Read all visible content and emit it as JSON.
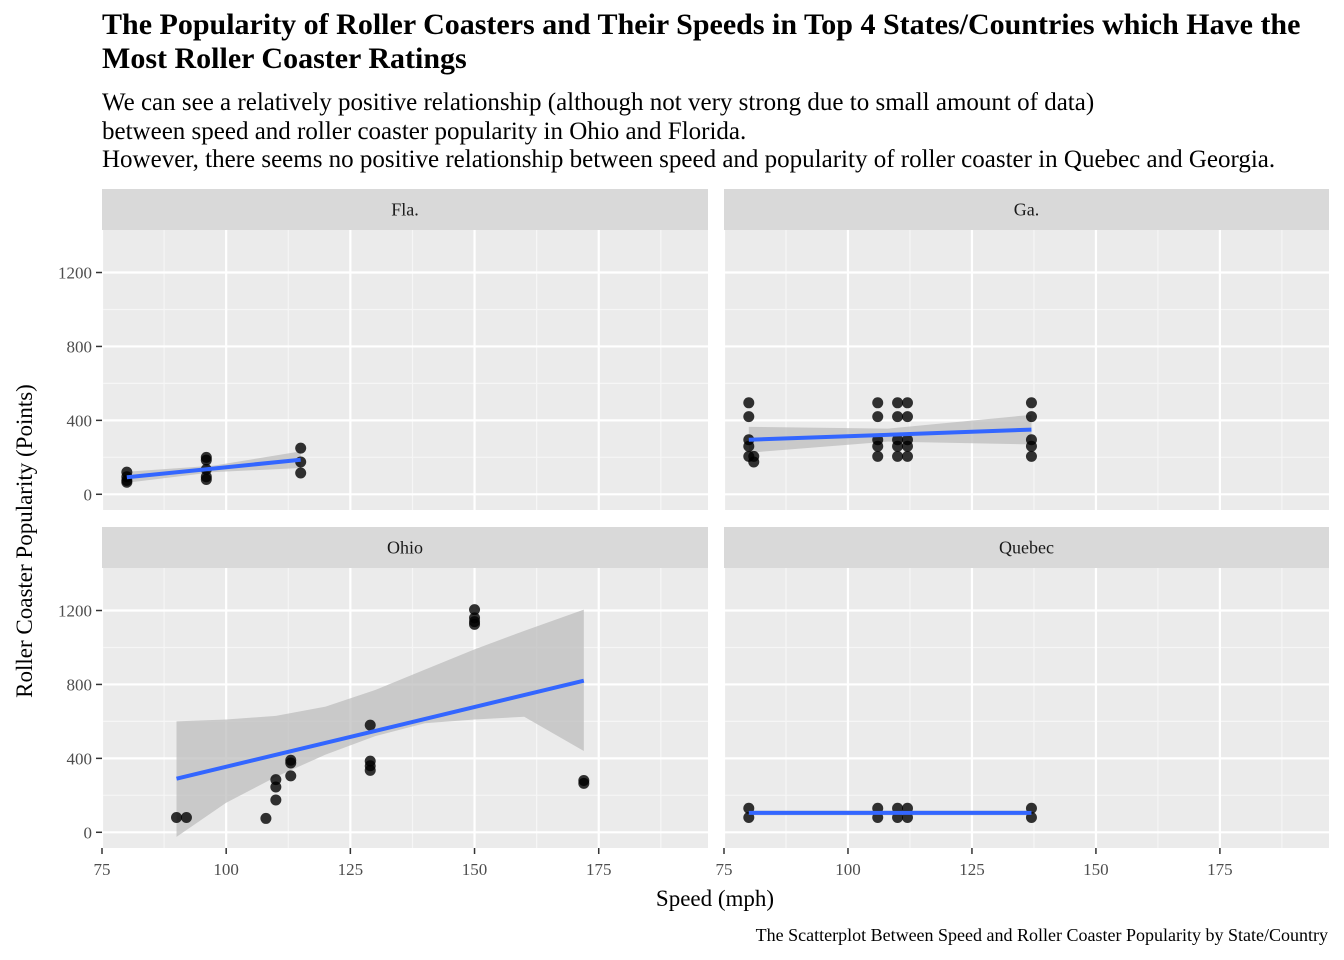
{
  "chart_data": {
    "type": "scatter",
    "title": "The Popularity of Roller Coasters and Their Speeds in Top 4 States/Countries which Have the Most Roller Coaster Ratings",
    "subtitle": [
      "We can see a relatively positive relationship (although not very strong due to small amount of data)",
      "between speed and roller coaster popularity in Ohio and Florida.",
      "However, there seems no positive relationship between speed and popularity of roller coaster in Quebec and Georgia."
    ],
    "xlabel": "Speed (mph)",
    "ylabel": "Roller Coaster Popularity (Points)",
    "caption": "The Scatterplot Between Speed and Roller Coaster Popularity by State/Country",
    "xlim": [
      75,
      197
    ],
    "ylim": [
      -85,
      1430
    ],
    "x_ticks": [
      75,
      100,
      125,
      150,
      175
    ],
    "y_ticks": [
      0,
      400,
      800,
      1200
    ],
    "grid": true,
    "smoothing": "linear regression with confidence band",
    "colors": {
      "points": "#000000",
      "line": "#3366ff",
      "band": "#bdbdbd",
      "panel": "#ebebeb",
      "strip": "#d9d9d9"
    },
    "panels": [
      {
        "name": "Fla.",
        "points": [
          [
            80,
            120
          ],
          [
            80,
            95
          ],
          [
            80,
            75
          ],
          [
            80,
            65
          ],
          [
            96,
            200
          ],
          [
            96,
            185
          ],
          [
            96,
            135
          ],
          [
            96,
            95
          ],
          [
            96,
            80
          ],
          [
            115,
            250
          ],
          [
            115,
            175
          ],
          [
            115,
            115
          ]
        ],
        "fit": {
          "x": [
            80,
            115
          ],
          "y": [
            92,
            187
          ]
        },
        "band": {
          "x": [
            80,
            97.5,
            115
          ],
          "upper": [
            122,
            155,
            232
          ],
          "lower": [
            62,
            120,
            142
          ]
        }
      },
      {
        "name": "Ga.",
        "points": [
          [
            80,
            495
          ],
          [
            80,
            420
          ],
          [
            80,
            295
          ],
          [
            80,
            260
          ],
          [
            80,
            205
          ],
          [
            81,
            175
          ],
          [
            81,
            205
          ],
          [
            106,
            495
          ],
          [
            106,
            420
          ],
          [
            106,
            295
          ],
          [
            106,
            260
          ],
          [
            106,
            205
          ],
          [
            110,
            495
          ],
          [
            110,
            420
          ],
          [
            110,
            295
          ],
          [
            110,
            260
          ],
          [
            110,
            205
          ],
          [
            112,
            495
          ],
          [
            112,
            420
          ],
          [
            112,
            295
          ],
          [
            112,
            260
          ],
          [
            112,
            205
          ],
          [
            137,
            495
          ],
          [
            137,
            420
          ],
          [
            137,
            295
          ],
          [
            137,
            260
          ],
          [
            137,
            205
          ]
        ],
        "fit": {
          "x": [
            80,
            137
          ],
          "y": [
            295,
            350
          ]
        },
        "band": {
          "x": [
            80,
            108,
            137
          ],
          "upper": [
            365,
            355,
            430
          ],
          "lower": [
            225,
            285,
            270
          ]
        }
      },
      {
        "name": "Ohio",
        "points": [
          [
            90,
            80
          ],
          [
            92,
            80
          ],
          [
            108,
            75
          ],
          [
            110,
            285
          ],
          [
            110,
            245
          ],
          [
            110,
            175
          ],
          [
            113,
            390
          ],
          [
            113,
            375
          ],
          [
            113,
            305
          ],
          [
            129,
            580
          ],
          [
            129,
            385
          ],
          [
            129,
            360
          ],
          [
            129,
            335
          ],
          [
            150,
            1205
          ],
          [
            150,
            1160
          ],
          [
            150,
            1140
          ],
          [
            150,
            1125
          ],
          [
            172,
            280
          ],
          [
            172,
            265
          ]
        ],
        "fit": {
          "x": [
            90,
            172
          ],
          "y": [
            290,
            820
          ]
        },
        "band": {
          "x": [
            90,
            100,
            110,
            120,
            130,
            140,
            150,
            160,
            172
          ],
          "upper": [
            600,
            610,
            630,
            680,
            770,
            880,
            990,
            1090,
            1205
          ],
          "lower": [
            -25,
            160,
            300,
            420,
            520,
            590,
            610,
            625,
            440
          ]
        }
      },
      {
        "name": "Quebec",
        "points": [
          [
            80,
            130
          ],
          [
            80,
            80
          ],
          [
            106,
            130
          ],
          [
            106,
            80
          ],
          [
            110,
            130
          ],
          [
            110,
            80
          ],
          [
            112,
            130
          ],
          [
            112,
            80
          ],
          [
            137,
            130
          ],
          [
            137,
            80
          ]
        ],
        "fit": {
          "x": [
            80,
            137
          ],
          "y": [
            105,
            105
          ]
        },
        "band": {
          "x": [
            80,
            137
          ],
          "upper": [
            118,
            118
          ],
          "lower": [
            92,
            92
          ]
        }
      }
    ]
  }
}
